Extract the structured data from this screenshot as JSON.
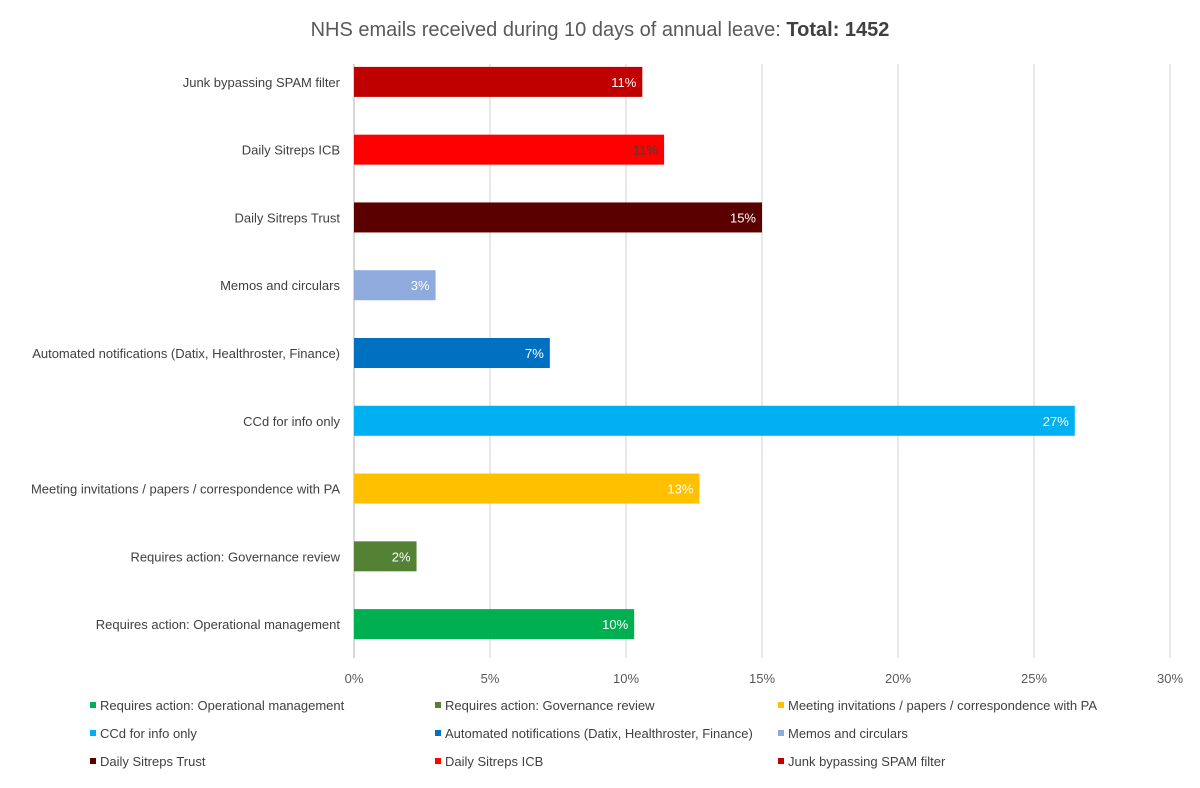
{
  "chart_data": {
    "type": "bar",
    "orientation": "horizontal",
    "title": "NHS emails received during 10 days of annual leave: ",
    "title_bold": "Total: 1452",
    "categories": [
      "Requires action: Operational management",
      "Requires action: Governance review",
      "Meeting invitations / papers / correspondence with PA",
      "CCd for info only",
      "Automated notifications (Datix, Healthroster, Finance)",
      "Memos and circulars",
      "Daily Sitreps Trust",
      "Daily Sitreps ICB",
      "Junk bypassing SPAM filter"
    ],
    "values": [
      10.3,
      2.3,
      12.7,
      26.5,
      7.2,
      3.0,
      15.0,
      11.4,
      10.6
    ],
    "data_labels": [
      "10%",
      "2%",
      "13%",
      "27%",
      "7%",
      "3%",
      "15%",
      "11%",
      "11%"
    ],
    "colors": [
      "#00b050",
      "#548235",
      "#ffc000",
      "#00b0f0",
      "#0070c0",
      "#8faadc",
      "#5b0000",
      "#ff0000",
      "#c00000"
    ],
    "label_colors": [
      "#ffffff",
      "#ffffff",
      "#ffffff",
      "#ffffff",
      "#ffffff",
      "#ffffff",
      "#ffffff",
      "#404040",
      "#ffffff"
    ],
    "xlim": [
      0,
      30
    ],
    "xticks": [
      0,
      5,
      10,
      15,
      20,
      25,
      30
    ],
    "xtick_labels": [
      "0%",
      "5%",
      "10%",
      "15%",
      "20%",
      "25%",
      "30%"
    ],
    "grid": true,
    "legend_position": "bottom",
    "xlabel": "",
    "ylabel": ""
  }
}
